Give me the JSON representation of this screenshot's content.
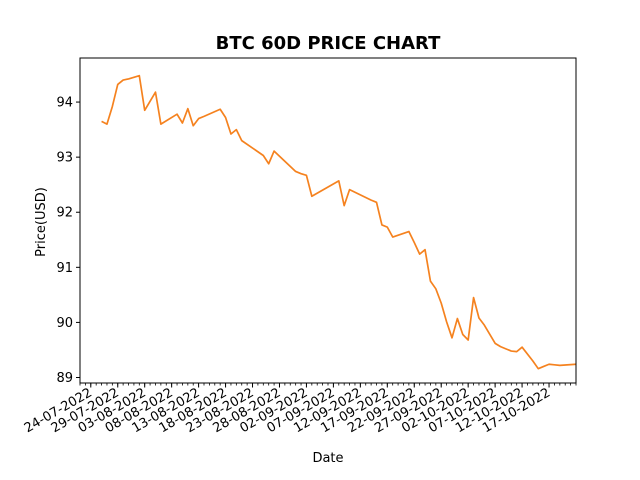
{
  "chart_data": {
    "type": "line",
    "title": "BTC 60D PRICE CHART",
    "xlabel": "Date",
    "ylabel": "Price(USD)",
    "grid": false,
    "legend": "none",
    "line_color": "#f5821f",
    "xlim": [
      "2022-07-22",
      "2022-10-22"
    ],
    "ylim": [
      88.9,
      94.8
    ],
    "x_tick_labels": [
      "24-07-2022",
      "29-07-2022",
      "03-08-2022",
      "08-08-2022",
      "13-08-2022",
      "18-08-2022",
      "23-08-2022",
      "28-08-2022",
      "02-09-2022",
      "07-09-2022",
      "12-09-2022",
      "17-09-2022",
      "22-09-2022",
      "27-09-2022",
      "02-10-2022",
      "07-10-2022",
      "12-10-2022",
      "17-10-2022"
    ],
    "y_ticks": [
      89,
      90,
      91,
      92,
      93,
      94
    ],
    "series": [
      {
        "x": [
          "2022-07-26",
          "2022-07-27",
          "2022-07-28",
          "2022-07-29",
          "2022-07-30",
          "2022-07-31",
          "2022-08-02",
          "2022-08-03",
          "2022-08-05",
          "2022-08-06",
          "2022-08-09",
          "2022-08-10",
          "2022-08-11",
          "2022-08-12",
          "2022-08-13",
          "2022-08-14",
          "2022-08-17",
          "2022-08-18",
          "2022-08-19",
          "2022-08-20",
          "2022-08-21",
          "2022-08-25",
          "2022-08-26",
          "2022-08-27",
          "2022-08-31",
          "2022-09-01",
          "2022-09-02",
          "2022-09-03",
          "2022-09-08",
          "2022-09-09",
          "2022-09-10",
          "2022-09-14",
          "2022-09-15",
          "2022-09-16",
          "2022-09-17",
          "2022-09-18",
          "2022-09-21",
          "2022-09-22",
          "2022-09-23",
          "2022-09-24",
          "2022-09-25",
          "2022-09-26",
          "2022-09-27",
          "2022-09-28",
          "2022-09-29",
          "2022-09-30",
          "2022-10-01",
          "2022-10-02",
          "2022-10-03",
          "2022-10-04",
          "2022-10-05",
          "2022-10-07",
          "2022-10-08",
          "2022-10-09",
          "2022-10-10",
          "2022-10-11",
          "2022-10-12",
          "2022-10-14",
          "2022-10-15",
          "2022-10-16",
          "2022-10-17",
          "2022-10-18",
          "2022-10-19",
          "2022-10-22"
        ],
        "y": [
          93.65,
          93.6,
          93.92,
          94.32,
          94.4,
          94.42,
          94.48,
          93.85,
          94.18,
          93.6,
          93.78,
          93.62,
          93.88,
          93.57,
          93.7,
          93.74,
          93.87,
          93.72,
          93.42,
          93.5,
          93.3,
          93.03,
          92.88,
          93.11,
          92.74,
          92.7,
          92.67,
          92.29,
          92.57,
          92.12,
          92.41,
          92.22,
          92.18,
          91.77,
          91.73,
          91.55,
          91.65,
          91.45,
          91.24,
          91.32,
          90.75,
          90.61,
          90.35,
          90.01,
          89.72,
          90.07,
          89.78,
          89.68,
          90.45,
          90.08,
          89.95,
          89.62,
          89.56,
          89.52,
          89.48,
          89.47,
          89.55,
          89.3,
          89.16,
          89.2,
          89.24,
          89.23,
          89.22,
          89.24
        ]
      }
    ]
  }
}
